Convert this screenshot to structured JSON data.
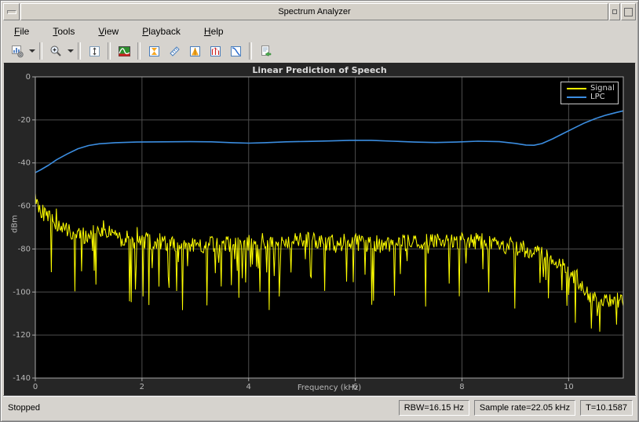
{
  "window": {
    "title": "Spectrum Analyzer"
  },
  "menu": {
    "items": [
      {
        "label": "File",
        "underline": 0
      },
      {
        "label": "Tools",
        "underline": 0
      },
      {
        "label": "View",
        "underline": 0
      },
      {
        "label": "Playback",
        "underline": 0
      },
      {
        "label": "Help",
        "underline": 0
      }
    ]
  },
  "toolbar": {
    "buttons": [
      "spectrum-settings",
      "zoom-in",
      "fit-to-view",
      "spectrogram",
      "cursor-measurements",
      "signal-statistics",
      "peak-finder",
      "distortion-measurements",
      "ccdf-measurements",
      "export"
    ]
  },
  "chart_data": {
    "type": "line",
    "title": "Linear Prediction of Speech",
    "xlabel": "Frequency (kHz)",
    "ylabel": "dBm",
    "xlim": [
      0,
      11.025
    ],
    "ylim": [
      -140,
      0
    ],
    "xticks": [
      0,
      2,
      4,
      6,
      8,
      10
    ],
    "yticks": [
      0,
      -20,
      -40,
      -60,
      -80,
      -100,
      -120,
      -140
    ],
    "grid": true,
    "plot_bg": "#000000",
    "figure_bg": "#262626",
    "grid_color": "#4e4e4e",
    "axis_color": "#a8a8a8",
    "tick_color": "#b8b8b8",
    "legend": {
      "position": "top-right",
      "entries": [
        {
          "name": "Signal",
          "color": "#ffff00"
        },
        {
          "name": "LPC",
          "color": "#3b8de0"
        }
      ]
    },
    "series": [
      {
        "name": "Signal",
        "color": "#ffff00",
        "style": "noisy",
        "envelope": [
          [
            0,
            -57
          ],
          [
            0.1,
            -62
          ],
          [
            0.25,
            -66
          ],
          [
            0.5,
            -70
          ],
          [
            0.8,
            -73
          ],
          [
            1.0,
            -74
          ],
          [
            1.25,
            -70
          ],
          [
            1.5,
            -75
          ],
          [
            2.0,
            -76
          ],
          [
            2.5,
            -77
          ],
          [
            3.0,
            -78
          ],
          [
            3.5,
            -78
          ],
          [
            4.0,
            -77
          ],
          [
            4.5,
            -77
          ],
          [
            5.0,
            -76
          ],
          [
            5.5,
            -77
          ],
          [
            6.0,
            -77
          ],
          [
            6.5,
            -78
          ],
          [
            7.0,
            -77
          ],
          [
            7.5,
            -76
          ],
          [
            8.0,
            -76
          ],
          [
            8.5,
            -77
          ],
          [
            9.0,
            -79
          ],
          [
            9.3,
            -81
          ],
          [
            9.6,
            -84
          ],
          [
            9.9,
            -88
          ],
          [
            10.1,
            -93
          ],
          [
            10.3,
            -99
          ],
          [
            10.5,
            -103
          ],
          [
            10.8,
            -104
          ],
          [
            11.025,
            -103
          ]
        ],
        "noise": {
          "seed": 20130517,
          "jitter": 4.0,
          "spike_prob": 0.1,
          "spike_min": 6,
          "spike_max": 30,
          "up_prob": 0.03,
          "up_max": 6,
          "points": 700,
          "floor": -138
        }
      },
      {
        "name": "LPC",
        "color": "#3b8de0",
        "points": [
          [
            0,
            -44.5
          ],
          [
            0.1,
            -43.2
          ],
          [
            0.25,
            -41.0
          ],
          [
            0.4,
            -38.5
          ],
          [
            0.6,
            -35.8
          ],
          [
            0.8,
            -33.4
          ],
          [
            1.0,
            -31.9
          ],
          [
            1.2,
            -31.1
          ],
          [
            1.5,
            -30.6
          ],
          [
            1.9,
            -30.3
          ],
          [
            2.4,
            -30.2
          ],
          [
            2.9,
            -30.1
          ],
          [
            3.3,
            -30.2
          ],
          [
            3.7,
            -30.6
          ],
          [
            4.0,
            -30.8
          ],
          [
            4.3,
            -30.6
          ],
          [
            4.7,
            -30.2
          ],
          [
            5.1,
            -30.0
          ],
          [
            5.5,
            -29.8
          ],
          [
            5.9,
            -29.5
          ],
          [
            6.3,
            -29.5
          ],
          [
            6.7,
            -29.9
          ],
          [
            7.1,
            -30.3
          ],
          [
            7.5,
            -30.5
          ],
          [
            7.9,
            -30.3
          ],
          [
            8.3,
            -29.9
          ],
          [
            8.7,
            -30.1
          ],
          [
            9.0,
            -30.9
          ],
          [
            9.2,
            -31.7
          ],
          [
            9.35,
            -31.8
          ],
          [
            9.5,
            -31.0
          ],
          [
            9.7,
            -28.8
          ],
          [
            9.9,
            -26.3
          ],
          [
            10.1,
            -23.8
          ],
          [
            10.3,
            -21.4
          ],
          [
            10.5,
            -19.4
          ],
          [
            10.7,
            -17.8
          ],
          [
            10.9,
            -16.5
          ],
          [
            11.025,
            -15.8
          ]
        ]
      }
    ]
  },
  "statusbar": {
    "state": "Stopped",
    "panels": [
      "RBW=16.15 Hz",
      "Sample rate=22.05 kHz",
      "T=10.1587"
    ]
  }
}
